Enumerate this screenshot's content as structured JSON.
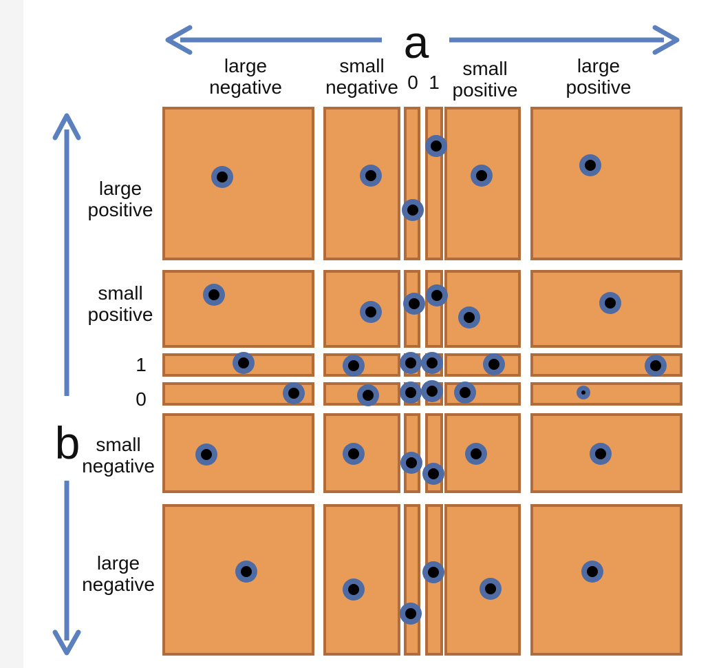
{
  "colors": {
    "cell_fill": "#e99b58",
    "cell_border": "#b06c3a",
    "arrow": "#5b80bd",
    "dot_ring": "#4e6ba3",
    "dot_center": "#000000"
  },
  "axis_a": {
    "letter": "a",
    "columns": [
      {
        "key": "large-negative",
        "line1": "large",
        "line2": "negative"
      },
      {
        "key": "small-negative",
        "line1": "small",
        "line2": "negative"
      },
      {
        "key": "zero",
        "line1": "0"
      },
      {
        "key": "one",
        "line1": "1"
      },
      {
        "key": "small-positive",
        "line1": "small",
        "line2": "positive"
      },
      {
        "key": "large-positive",
        "line1": "large",
        "line2": "positive"
      }
    ]
  },
  "axis_b": {
    "letter": "b",
    "rows": [
      {
        "key": "large-positive",
        "line1": "large",
        "line2": "positive"
      },
      {
        "key": "small-positive",
        "line1": "small",
        "line2": "positive"
      },
      {
        "key": "one",
        "line1": "1"
      },
      {
        "key": "zero",
        "line1": "0"
      },
      {
        "key": "small-negative",
        "line1": "small",
        "line2": "negative"
      },
      {
        "key": "large-negative",
        "line1": "large",
        "line2": "negative"
      }
    ]
  }
}
